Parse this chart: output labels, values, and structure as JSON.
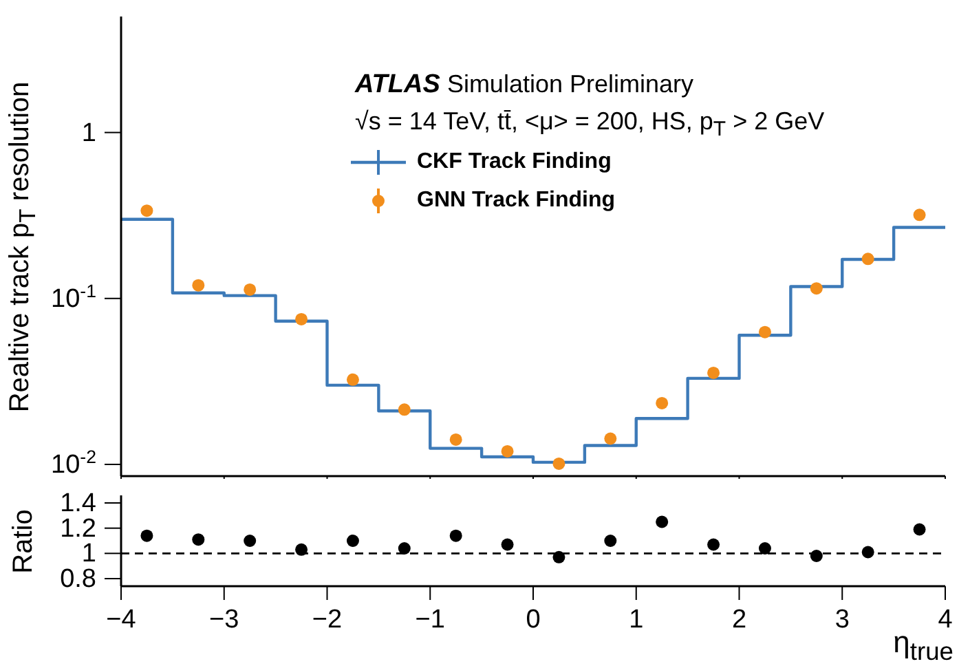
{
  "chart_data": [
    {
      "type": "histogram",
      "ylabel": "Realtive track p$_{T}$ resolution",
      "annotations": [
        "ATLAS",
        "Simulation Preliminary",
        "√s = 14 TeV, tt̄, <μ> = 200, HS, p$_{T}$ > 2 GeV"
      ],
      "log": "y",
      "xlim": [
        -4,
        4
      ],
      "xticks": [
        -4,
        -3,
        -2,
        -1,
        0,
        1,
        2,
        3,
        4
      ],
      "ylim": [
        0.0085,
        5
      ],
      "yticks": [
        {
          "value": 0.01,
          "label": "10$^{-2}$"
        },
        {
          "value": 0.1,
          "label": "10$^{-1}$"
        },
        1
      ],
      "tick_labels": "y",
      "legend": "top",
      "grid": false,
      "series": [
        {
          "name": "CKF Track Finding",
          "color": "#3d7ab8",
          "bins": [
            -4,
            -3.5,
            -3,
            -2.5,
            -2,
            -1.5,
            -1,
            -0.5,
            0,
            0.5,
            1,
            1.5,
            2,
            2.5,
            3,
            3.5,
            4
          ],
          "values": [
            0.3,
            0.108,
            0.104,
            0.073,
            0.03,
            0.021,
            0.0125,
            0.0111,
            0.0103,
            0.013,
            0.0189,
            0.033,
            0.06,
            0.118,
            0.172,
            0.268
          ]
        },
        {
          "name": "GNN Track Finding",
          "type": "scatter",
          "marker": "circle",
          "color": "#f28e1c",
          "x": [
            -3.75,
            -3.25,
            -2.75,
            -2.25,
            -1.75,
            -1.25,
            -0.75,
            -0.25,
            0.25,
            0.75,
            1.25,
            1.75,
            2.25,
            2.75,
            3.25,
            3.75
          ],
          "values": [
            0.338,
            0.12,
            0.113,
            0.075,
            0.0324,
            0.0214,
            0.0141,
            0.012,
            0.0101,
            0.0143,
            0.0234,
            0.0356,
            0.0627,
            0.115,
            0.173,
            0.319
          ]
        }
      ]
    },
    {
      "type": "scatter",
      "xlabel": "η$_{true}$",
      "ylabel": "Ratio",
      "xlim": [
        -4,
        4
      ],
      "xticks": [
        {
          "value": -4,
          "label": "−4"
        },
        {
          "value": -3,
          "label": "−3"
        },
        {
          "value": -2,
          "label": "−2"
        },
        {
          "value": -1,
          "label": "−1"
        },
        0,
        1,
        2,
        3,
        4
      ],
      "ylim": [
        0.74,
        1.46
      ],
      "yticks": [
        0.8,
        1,
        1.2,
        1.4
      ],
      "grid": false,
      "marker": "circle",
      "ref_lines": [
        {
          "axis": "y",
          "value": 1,
          "line_style": "dashed",
          "color": "#000000"
        }
      ],
      "series": [
        {
          "color": "#000000",
          "x": [
            -3.75,
            -3.25,
            -2.75,
            -2.25,
            -1.75,
            -1.25,
            -0.75,
            -0.25,
            0.25,
            0.75,
            1.25,
            1.75,
            2.25,
            2.75,
            3.25,
            3.75
          ],
          "values": [
            1.14,
            1.11,
            1.1,
            1.03,
            1.1,
            1.04,
            1.14,
            1.07,
            0.97,
            1.1,
            1.25,
            1.07,
            1.04,
            0.98,
            1.01,
            1.19
          ]
        }
      ]
    }
  ]
}
